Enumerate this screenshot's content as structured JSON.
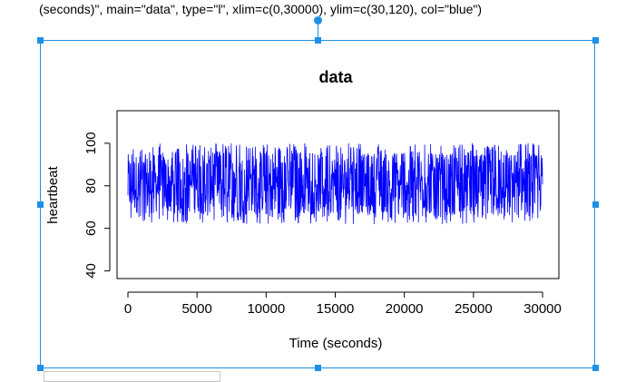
{
  "code_snippet": "(seconds)\", main=\"data\", type=\"l\", xlim=c(0,30000), ylim=c(30,120), col=\"blue\")",
  "chart_data": {
    "type": "line",
    "title": "data",
    "xlabel": "Time (seconds)",
    "ylabel": "heartbeat",
    "xlim": [
      0,
      30000
    ],
    "ylim": [
      30,
      120
    ],
    "x_ticks": [
      0,
      5000,
      10000,
      15000,
      20000,
      25000,
      30000
    ],
    "y_ticks": [
      40,
      60,
      80,
      100
    ],
    "x_tick_labels": [
      "0",
      "5000",
      "10000",
      "15000",
      "20000",
      "25000",
      "30000"
    ],
    "y_tick_labels": [
      "40",
      "60",
      "80",
      "100"
    ],
    "series": [
      {
        "color": "#0000ff",
        "x_range": [
          0,
          30000
        ],
        "y_min": 62,
        "y_max": 100,
        "y_typical_center": 81
      }
    ],
    "grid": false,
    "legend": "none"
  },
  "colors": {
    "selection": "#1e90e6",
    "series": "#0000ff"
  }
}
